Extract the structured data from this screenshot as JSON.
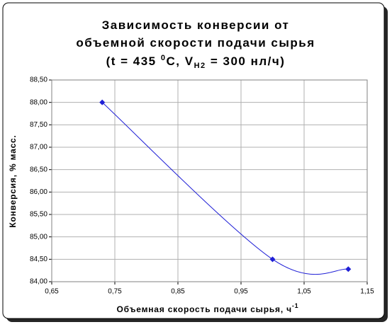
{
  "chart_data": {
    "type": "line",
    "title": [
      "Зависимость конверсии от",
      "объемной скорости подачи сырья",
      [
        "(t = 435 ",
        "0",
        "C, V",
        "H2",
        " = 300 нл/ч)"
      ]
    ],
    "x_label": "Объемная скорость подачи сырья, ч",
    "x_label_sup": "-1",
    "y_label": "Конверсия, % масс.",
    "x": [
      0.73,
      1.0,
      1.12
    ],
    "series": [
      {
        "color": "#1f1fd6",
        "values": [
          88.0,
          84.5,
          84.28
        ]
      }
    ],
    "xlim": [
      0.65,
      1.15
    ],
    "xticks": [
      {
        "value": 0.65,
        "label": "0,65"
      },
      {
        "value": 0.75,
        "label": "0,75"
      },
      {
        "value": 0.85,
        "label": "0,85"
      },
      {
        "value": 0.95,
        "label": "0,95"
      },
      {
        "value": 1.05,
        "label": "1,05"
      },
      {
        "value": 1.15,
        "label": "1,15"
      }
    ],
    "ylim": [
      84.0,
      88.5
    ],
    "yticks": [
      {
        "value": 84.0,
        "label": "84,00"
      },
      {
        "value": 84.5,
        "label": "84,50"
      },
      {
        "value": 85.0,
        "label": "85,00"
      },
      {
        "value": 85.5,
        "label": "85,50"
      },
      {
        "value": 86.0,
        "label": "86,00"
      },
      {
        "value": 86.5,
        "label": "86,50"
      },
      {
        "value": 87.0,
        "label": "87,00"
      },
      {
        "value": 87.5,
        "label": "87,50"
      },
      {
        "value": 88.0,
        "label": "88,00"
      },
      {
        "value": 88.5,
        "label": "88,50"
      }
    ],
    "grid": true
  }
}
